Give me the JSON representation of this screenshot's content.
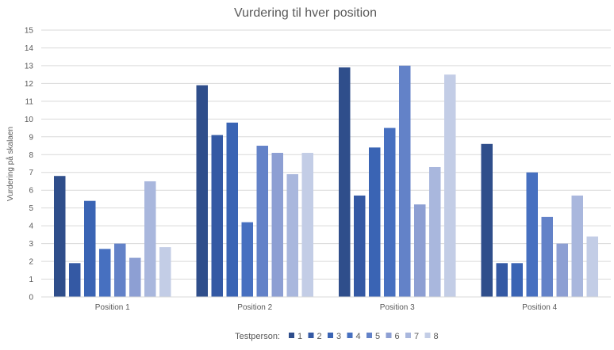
{
  "chart_data": {
    "type": "bar",
    "title": "Vurdering til hver position",
    "ylabel": "Vurdering på skalaen",
    "xlabel": "",
    "ylim": [
      0,
      15
    ],
    "yticks": [
      0,
      1,
      2,
      3,
      4,
      5,
      6,
      7,
      8,
      9,
      10,
      11,
      12,
      13,
      14,
      15
    ],
    "grid": true,
    "legend_position": "bottom",
    "legend_title": "Testperson:",
    "categories": [
      "Position 1",
      "Position 2",
      "Position 3",
      "Position 4"
    ],
    "series": [
      {
        "name": "1",
        "color": "#2F4E8B",
        "values": [
          6.8,
          11.9,
          12.9,
          8.6
        ]
      },
      {
        "name": "2",
        "color": "#3459A4",
        "values": [
          1.9,
          9.1,
          5.7,
          1.9
        ]
      },
      {
        "name": "3",
        "color": "#3A64B4",
        "values": [
          5.4,
          9.8,
          8.4,
          1.9
        ]
      },
      {
        "name": "4",
        "color": "#4770C0",
        "values": [
          2.7,
          4.2,
          9.5,
          7.0
        ]
      },
      {
        "name": "5",
        "color": "#6382C8",
        "values": [
          3.0,
          8.5,
          13.0,
          4.5
        ]
      },
      {
        "name": "6",
        "color": "#8D9FD3",
        "values": [
          2.2,
          8.1,
          5.2,
          3.0
        ]
      },
      {
        "name": "7",
        "color": "#A9B7DD",
        "values": [
          6.5,
          6.9,
          7.3,
          5.7
        ]
      },
      {
        "name": "8",
        "color": "#C3CDE6",
        "values": [
          2.8,
          8.1,
          12.5,
          3.4
        ]
      }
    ]
  }
}
